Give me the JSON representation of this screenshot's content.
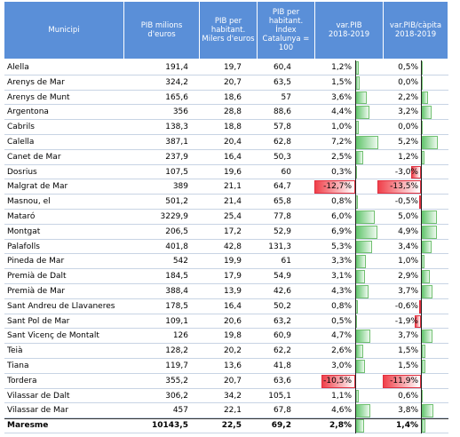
{
  "header": {
    "columns": [
      "Municipi",
      "PIB milions\nd'euros",
      "PIB  per\nhabitant.\nMilers d'euros",
      "PIB  per\nhabitant.\nÍndex\nCatalunya =\n100",
      "var.PIB\n2018-2019",
      "var.PIB/càpita\n2018-2019"
    ]
  },
  "table": {
    "rows": [
      [
        "Alella",
        "191,4",
        "19,7",
        "60,4",
        "1,2%",
        "0,5%"
      ],
      [
        "Arenys de Mar",
        "324,2",
        "20,7",
        "63,5",
        "1,5%",
        "0,0%"
      ],
      [
        "Arenys de Munt",
        "165,6",
        "18,6",
        "57",
        "3,6%",
        "2,2%"
      ],
      [
        "Argentona",
        "356",
        "28,8",
        "88,6",
        "4,4%",
        "3,2%"
      ],
      [
        "Cabrils",
        "138,3",
        "18,8",
        "57,8",
        "1,0%",
        "0,0%"
      ],
      [
        "Calella",
        "387,1",
        "20,4",
        "62,8",
        "7,2%",
        "5,2%"
      ],
      [
        "Canet de Mar",
        "237,9",
        "16,4",
        "50,3",
        "2,5%",
        "1,2%"
      ],
      [
        "Dosrius",
        "107,5",
        "19,6",
        "60",
        "0,3%",
        "-3,0%"
      ],
      [
        "Malgrat de Mar",
        "389",
        "21,1",
        "64,7",
        "-12,7%",
        "-13,5%"
      ],
      [
        "Masnou, el",
        "501,2",
        "21,4",
        "65,8",
        "0,8%",
        "-0,5%"
      ],
      [
        "Mataró",
        "3229,9",
        "25,4",
        "77,8",
        "6,0%",
        "5,0%"
      ],
      [
        "Montgat",
        "206,5",
        "17,2",
        "52,9",
        "6,9%",
        "4,9%"
      ],
      [
        "Palafolls",
        "401,8",
        "42,8",
        "131,3",
        "5,3%",
        "3,4%"
      ],
      [
        "Pineda de Mar",
        "542",
        "19,9",
        "61",
        "3,3%",
        "1,0%"
      ],
      [
        "Premià de Dalt",
        "184,5",
        "17,9",
        "54,9",
        "3,1%",
        "2,9%"
      ],
      [
        "Premià de Mar",
        "388,4",
        "13,9",
        "42,6",
        "4,3%",
        "3,7%"
      ],
      [
        "Sant Andreu de Llavaneres",
        "178,5",
        "16,4",
        "50,2",
        "0,8%",
        "-0,6%"
      ],
      [
        "Sant Pol de Mar",
        "109,1",
        "20,6",
        "63,2",
        "0,5%",
        "-1,9%"
      ],
      [
        "Sant Vicenç de Montalt",
        "126",
        "19,8",
        "60,9",
        "4,7%",
        "3,7%"
      ],
      [
        "Teià",
        "128,2",
        "20,2",
        "62,2",
        "2,6%",
        "1,5%"
      ],
      [
        "Tiana",
        "119,7",
        "13,6",
        "41,8",
        "3,0%",
        "1,5%"
      ],
      [
        "Tordera",
        "355,2",
        "20,7",
        "63,6",
        "-10,5%",
        "-11,9%"
      ],
      [
        "Vilassar de Dalt",
        "306,2",
        "34,2",
        "105,1",
        "1,1%",
        "0,6%"
      ],
      [
        "Vilassar de Mar",
        "457",
        "22,1",
        "67,8",
        "4,6%",
        "3,8%"
      ],
      [
        "Maresme",
        "10143,5",
        "22,5",
        "69,2",
        "2,8%",
        "1,4%"
      ]
    ]
  }
}
